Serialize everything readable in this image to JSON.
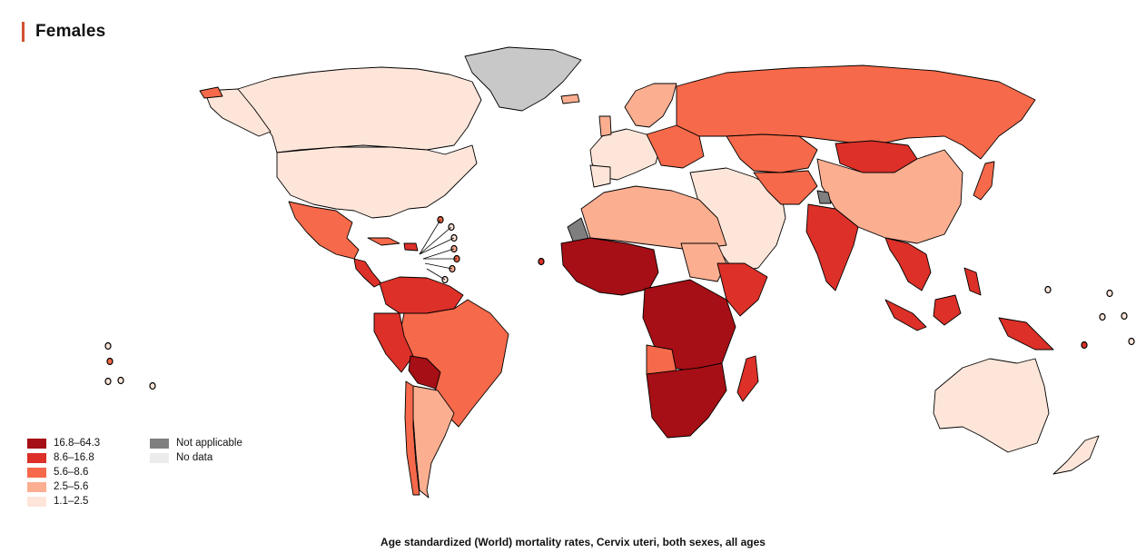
{
  "title": "Females",
  "caption": "Age standardized (World) mortality rates, Cervix uteri, both sexes, all ages",
  "colors": {
    "accent": "#d2512f",
    "c1": "#a50f15",
    "c2": "#dc3028",
    "c3": "#f6694a",
    "c4": "#fcae91",
    "c5": "#fee5d9",
    "not_applicable": "#7f7f7f",
    "no_data": "#ececec",
    "greenland": "#c8c8c8",
    "border": "#000000"
  },
  "legend": {
    "scale": [
      {
        "label": "16.8–64.3",
        "color": "#a50f15"
      },
      {
        "label": "8.6–16.8",
        "color": "#dc3028"
      },
      {
        "label": "5.6–8.6",
        "color": "#f6694a"
      },
      {
        "label": "2.5–5.6",
        "color": "#fcae91"
      },
      {
        "label": "1.1–2.5",
        "color": "#fee5d9"
      }
    ],
    "other": [
      {
        "label": "Not applicable",
        "color": "#7f7f7f"
      },
      {
        "label": "No data",
        "color": "#ececec"
      }
    ]
  }
}
